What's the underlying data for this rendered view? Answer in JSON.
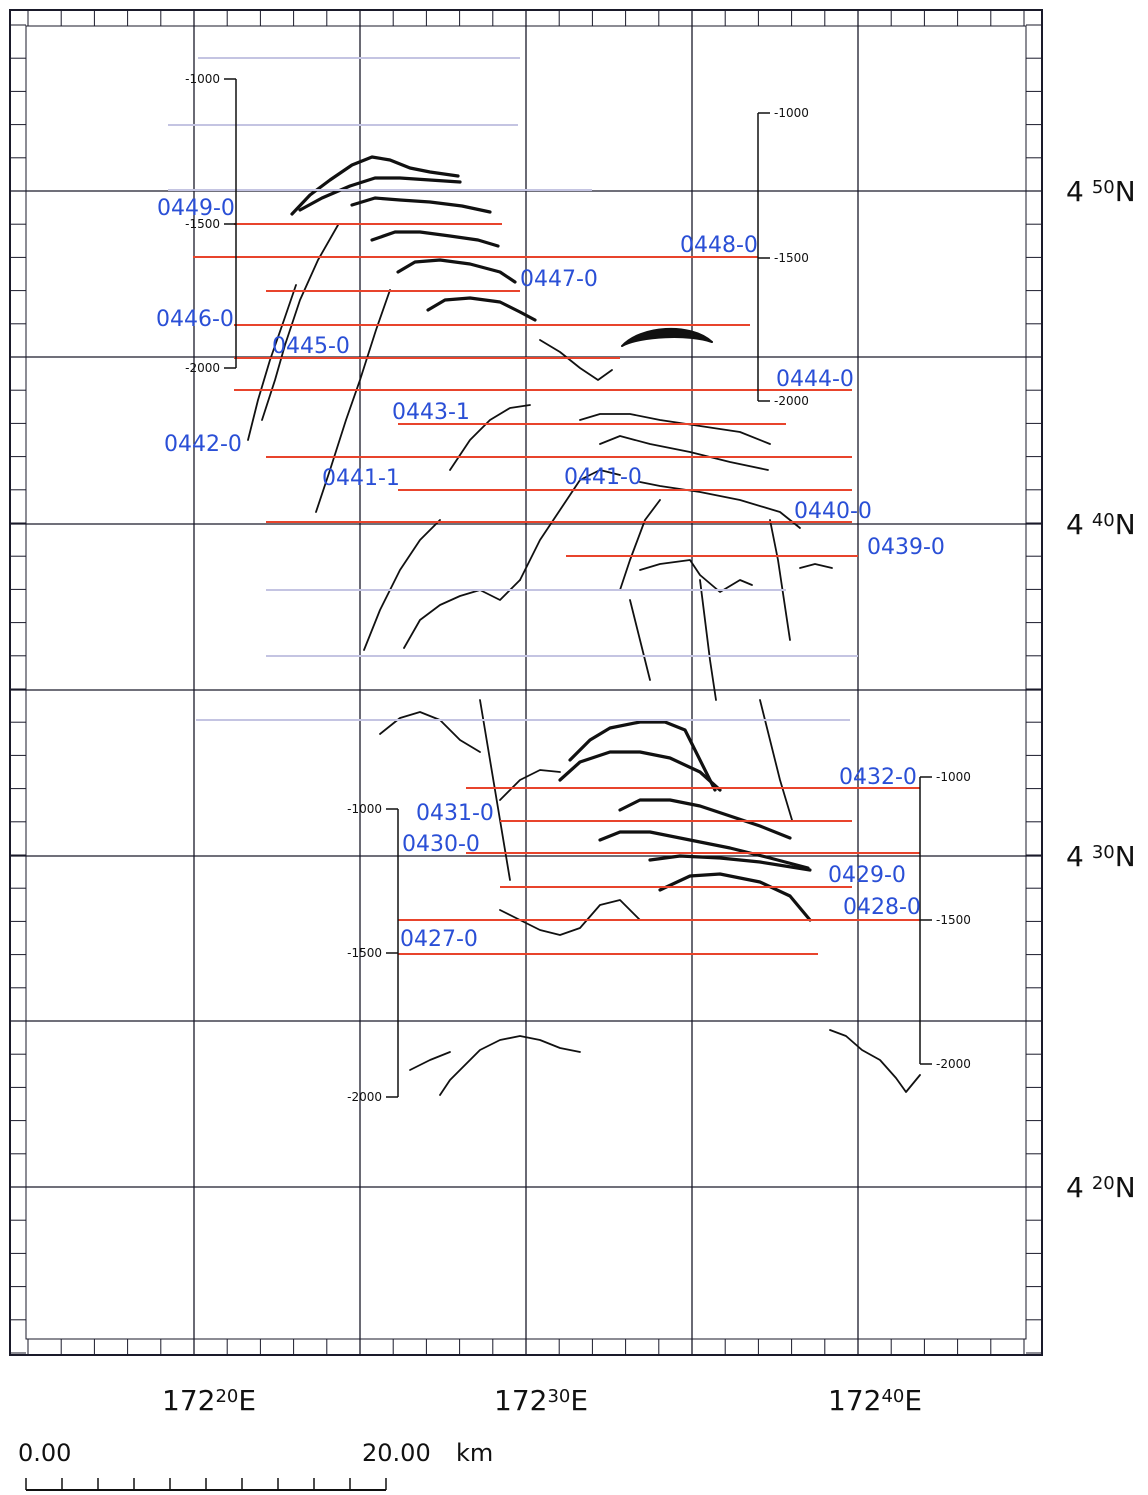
{
  "map": {
    "lat_labels": [
      {
        "deg": "4",
        "min": "50",
        "hem": "N"
      },
      {
        "deg": "4",
        "min": "40",
        "hem": "N"
      },
      {
        "deg": "4",
        "min": "30",
        "hem": "N"
      },
      {
        "deg": "4",
        "min": "20",
        "hem": "N"
      }
    ],
    "lon_labels": [
      {
        "deg": "172",
        "min": "20",
        "hem": "E"
      },
      {
        "deg": "172",
        "min": "30",
        "hem": "E"
      },
      {
        "deg": "172",
        "min": "40",
        "hem": "E"
      }
    ],
    "colors": {
      "track_line": "#e8442c",
      "unlabeled_track": "#c4c4e2",
      "line_label": "#2a4fd6",
      "grid": "#1a1a2a",
      "profile": "#111111"
    },
    "survey_lines": [
      {
        "id": "0449-0"
      },
      {
        "id": "0448-0"
      },
      {
        "id": "0447-0"
      },
      {
        "id": "0446-0"
      },
      {
        "id": "0445-0"
      },
      {
        "id": "0444-0"
      },
      {
        "id": "0443-1"
      },
      {
        "id": "0442-0"
      },
      {
        "id": "0441-1"
      },
      {
        "id": "0441-0"
      },
      {
        "id": "0440-0"
      },
      {
        "id": "0439-0"
      },
      {
        "id": "0432-0"
      },
      {
        "id": "0431-0"
      },
      {
        "id": "0430-0"
      },
      {
        "id": "0429-0"
      },
      {
        "id": "0428-0"
      },
      {
        "id": "0427-0"
      }
    ],
    "depth_scales": [
      {
        "ticks": [
          "-1000",
          "-1500",
          "-2000"
        ]
      },
      {
        "ticks": [
          "-1000",
          "-1500",
          "-2000"
        ]
      },
      {
        "ticks": [
          "-1000",
          "-1500",
          "-2000"
        ]
      },
      {
        "ticks": [
          "-1000",
          "-1500",
          "-2000"
        ]
      }
    ],
    "scale_bar": {
      "start_label": "0.00",
      "end_label": "20.00",
      "unit": "km"
    }
  }
}
